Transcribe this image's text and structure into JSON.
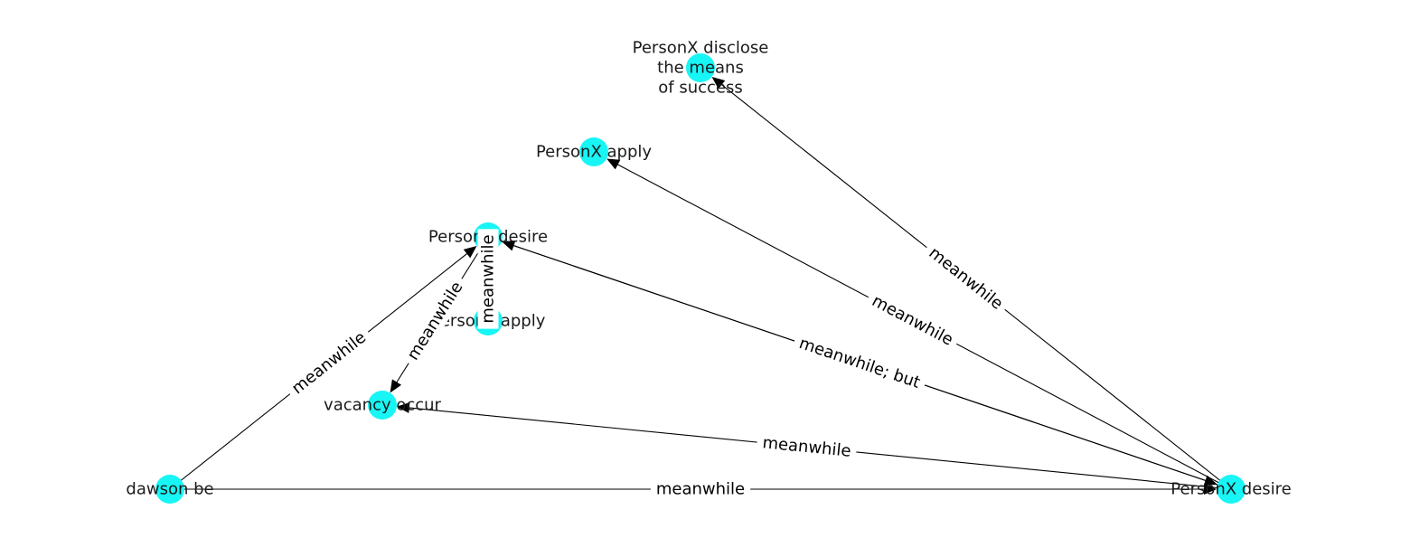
{
  "graph": {
    "colors": {
      "node": "#18f5f5",
      "edge": "#000000",
      "text": "#1a1a1a"
    },
    "nodes": [
      {
        "id": "disclose",
        "label_lines": [
          "PersonX disclose",
          "the means",
          "of success"
        ]
      },
      {
        "id": "x_apply",
        "label_lines": [
          "PersonX apply"
        ]
      },
      {
        "id": "y_desire",
        "label_lines": [
          "PersonY desire"
        ]
      },
      {
        "id": "y_apply",
        "label_lines": [
          "PersonY apply"
        ]
      },
      {
        "id": "vacancy",
        "label_lines": [
          "vacancy occur"
        ]
      },
      {
        "id": "dawson",
        "label_lines": [
          "dawson be"
        ]
      },
      {
        "id": "x_desire",
        "label_lines": [
          "PersonX desire"
        ]
      }
    ],
    "edges": [
      {
        "from": "x_desire",
        "to": "disclose",
        "label": "meanwhile"
      },
      {
        "from": "x_desire",
        "to": "x_apply",
        "label": "meanwhile"
      },
      {
        "from": "x_desire",
        "to": "y_desire",
        "label": "meanwhile;  but"
      },
      {
        "from": "y_desire",
        "to": "x_desire",
        "label": ""
      },
      {
        "from": "x_desire",
        "to": "vacancy",
        "label": "meanwhile"
      },
      {
        "from": "dawson",
        "to": "x_desire",
        "label": "meanwhile"
      },
      {
        "from": "dawson",
        "to": "y_desire",
        "label": "meanwhile"
      },
      {
        "from": "y_desire",
        "to": "vacancy",
        "label": "meanwhile"
      },
      {
        "from": "y_apply",
        "to": "y_desire",
        "label": "meanwhile"
      }
    ]
  }
}
